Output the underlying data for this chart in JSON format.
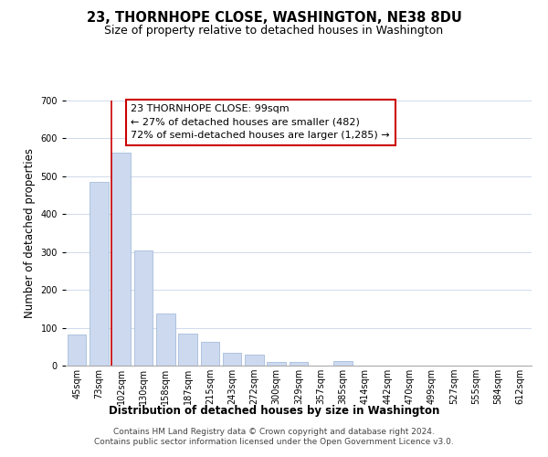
{
  "title": "23, THORNHOPE CLOSE, WASHINGTON, NE38 8DU",
  "subtitle": "Size of property relative to detached houses in Washington",
  "xlabel": "Distribution of detached houses by size in Washington",
  "ylabel": "Number of detached properties",
  "bar_labels": [
    "45sqm",
    "73sqm",
    "102sqm",
    "130sqm",
    "158sqm",
    "187sqm",
    "215sqm",
    "243sqm",
    "272sqm",
    "300sqm",
    "329sqm",
    "357sqm",
    "385sqm",
    "414sqm",
    "442sqm",
    "470sqm",
    "499sqm",
    "527sqm",
    "555sqm",
    "584sqm",
    "612sqm"
  ],
  "bar_values": [
    82,
    485,
    563,
    303,
    138,
    85,
    63,
    35,
    28,
    10,
    10,
    0,
    12,
    0,
    0,
    0,
    0,
    0,
    0,
    0,
    0
  ],
  "bar_color": "#ccd9ef",
  "bar_edge_color": "#9ab3d5",
  "highlight_color": "#cc0000",
  "highlight_bar_index": 2,
  "ylim": [
    0,
    700
  ],
  "yticks": [
    0,
    100,
    200,
    300,
    400,
    500,
    600,
    700
  ],
  "annotation_title": "23 THORNHOPE CLOSE: 99sqm",
  "annotation_line1": "← 27% of detached houses are smaller (482)",
  "annotation_line2": "72% of semi-detached houses are larger (1,285) →",
  "footer_line1": "Contains HM Land Registry data © Crown copyright and database right 2024.",
  "footer_line2": "Contains public sector information licensed under the Open Government Licence v3.0.",
  "bg_color": "#f0f4fa",
  "title_fontsize": 10.5,
  "subtitle_fontsize": 9,
  "axis_label_fontsize": 8.5,
  "tick_fontsize": 7,
  "annotation_fontsize": 8,
  "footer_fontsize": 6.5
}
